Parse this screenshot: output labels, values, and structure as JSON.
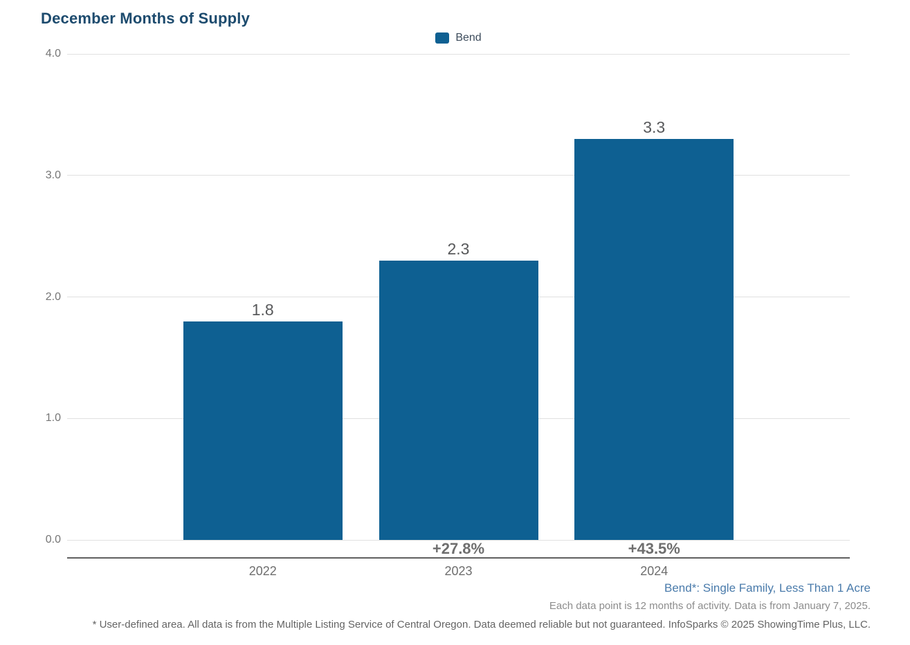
{
  "chart_data": {
    "type": "bar",
    "title": "December Months of Supply",
    "categories": [
      "2022",
      "2023",
      "2024"
    ],
    "series": [
      {
        "name": "Bend",
        "values": [
          1.8,
          2.3,
          3.3
        ],
        "color": "#0e6092"
      }
    ],
    "value_labels": [
      "1.8",
      "2.3",
      "3.3"
    ],
    "pct_change_labels": [
      "",
      "+27.8%",
      "+43.5%"
    ],
    "ylim": [
      0,
      4
    ],
    "yticks": [
      {
        "value": 0,
        "label": "0.0"
      },
      {
        "value": 1,
        "label": "1.0"
      },
      {
        "value": 2,
        "label": "2.0"
      },
      {
        "value": 3,
        "label": "3.0"
      },
      {
        "value": 4,
        "label": "4.0"
      }
    ],
    "grid": true,
    "legend_position": "top-center",
    "xlabel": "",
    "ylabel": ""
  },
  "legend": {
    "label": "Bend"
  },
  "footnotes": {
    "series_definition": "Bend*: Single Family, Less Than 1 Acre",
    "data_note": "Each data point is 12 months of activity. Data is from January 7, 2025.",
    "disclaimer": "* User-defined area. All data is from the Multiple Listing Service of Central Oregon. Data deemed reliable but not guaranteed. InfoSparks © 2025 ShowingTime Plus, LLC."
  },
  "colors": {
    "bar": "#0e6092",
    "title_text": "#1d4b6e",
    "series_definition_text": "#4a7bab",
    "gridline": "#e0e0e0",
    "axis_line": "#606060",
    "value_label_text": "#58595b",
    "tick_label_text": "#6e6e6e"
  }
}
